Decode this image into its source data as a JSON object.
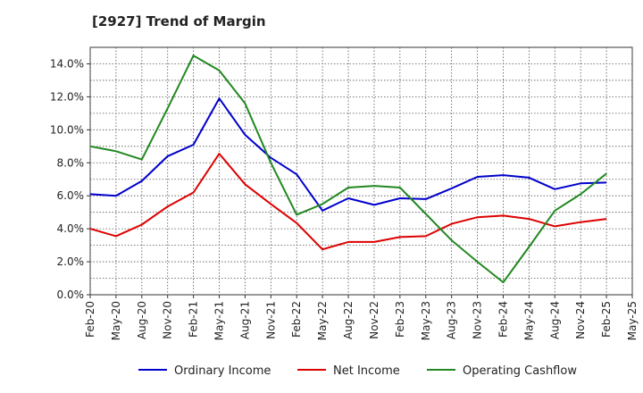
{
  "chart_data": {
    "type": "line",
    "title": "[2927]  Trend of Margin",
    "xlabel": "",
    "ylabel": "",
    "x": [
      "Feb-20",
      "May-20",
      "Aug-20",
      "Nov-20",
      "Feb-21",
      "May-21",
      "Aug-21",
      "Nov-21",
      "Feb-22",
      "May-22",
      "Aug-22",
      "Nov-22",
      "Feb-23",
      "May-23",
      "Aug-23",
      "Nov-23",
      "Feb-24",
      "May-24",
      "Aug-24",
      "Nov-24",
      "Feb-25",
      "May-25"
    ],
    "ylim": [
      0,
      15
    ],
    "yticks": [
      0,
      2,
      4,
      6,
      8,
      10,
      12,
      14
    ],
    "ytick_labels": [
      "0.0%",
      "2.0%",
      "4.0%",
      "6.0%",
      "8.0%",
      "10.0%",
      "12.0%",
      "14.0%"
    ],
    "grid": true,
    "legend_position": "bottom",
    "series": [
      {
        "name": "Ordinary Income",
        "color": "#0000cc",
        "values": [
          6.1,
          6.0,
          6.9,
          8.4,
          9.1,
          11.9,
          9.7,
          8.3,
          7.3,
          5.1,
          5.85,
          5.45,
          5.85,
          5.8,
          6.45,
          7.15,
          7.25,
          7.1,
          6.4,
          6.75,
          6.8,
          null
        ]
      },
      {
        "name": "Net Income",
        "color": "#dd0000",
        "values": [
          4.0,
          3.55,
          4.25,
          5.35,
          6.2,
          8.55,
          6.7,
          5.5,
          4.35,
          2.75,
          3.2,
          3.2,
          3.5,
          3.55,
          4.3,
          4.7,
          4.8,
          4.6,
          4.15,
          4.4,
          4.6,
          null
        ]
      },
      {
        "name": "Operating Cashflow",
        "color": "#228822",
        "values": [
          9.0,
          8.7,
          8.2,
          11.3,
          14.5,
          13.6,
          11.6,
          8.0,
          4.85,
          5.5,
          6.5,
          6.6,
          6.5,
          4.9,
          3.3,
          2.0,
          0.75,
          2.9,
          5.1,
          6.1,
          7.35,
          null
        ]
      }
    ]
  }
}
